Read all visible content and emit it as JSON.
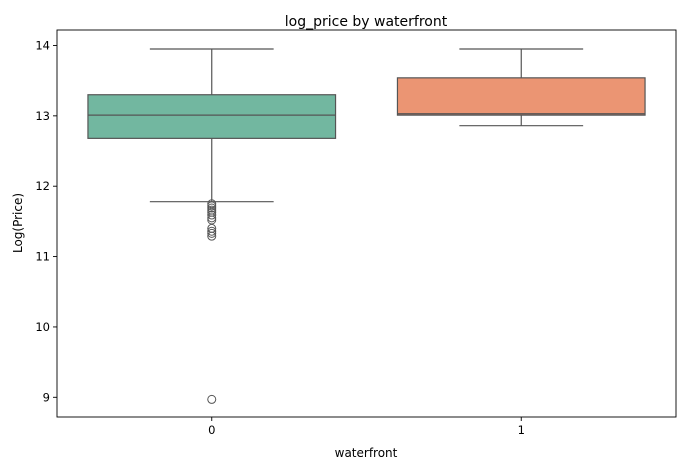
{
  "chart_data": {
    "type": "box",
    "title": "log_price by waterfront",
    "xlabel": "waterfront",
    "ylabel": "Log(Price)",
    "categories": [
      "0",
      "1"
    ],
    "ylim": [
      8.72,
      14.22
    ],
    "yticks": [
      9,
      10,
      11,
      12,
      13,
      14
    ],
    "grid": false,
    "boxes": [
      {
        "category": "0",
        "color": "#72b7a0",
        "whisker_low": 11.78,
        "q1": 12.68,
        "median": 13.01,
        "q3": 13.3,
        "whisker_high": 13.95,
        "outliers": [
          11.75,
          11.72,
          11.69,
          11.66,
          11.63,
          11.59,
          11.55,
          11.52,
          11.4,
          11.36,
          11.33,
          11.29,
          8.97
        ]
      },
      {
        "category": "1",
        "color": "#eb9573",
        "whisker_low": 12.86,
        "q1": 13.01,
        "median": 13.03,
        "q3": 13.54,
        "whisker_high": 13.95,
        "outliers": []
      }
    ]
  }
}
